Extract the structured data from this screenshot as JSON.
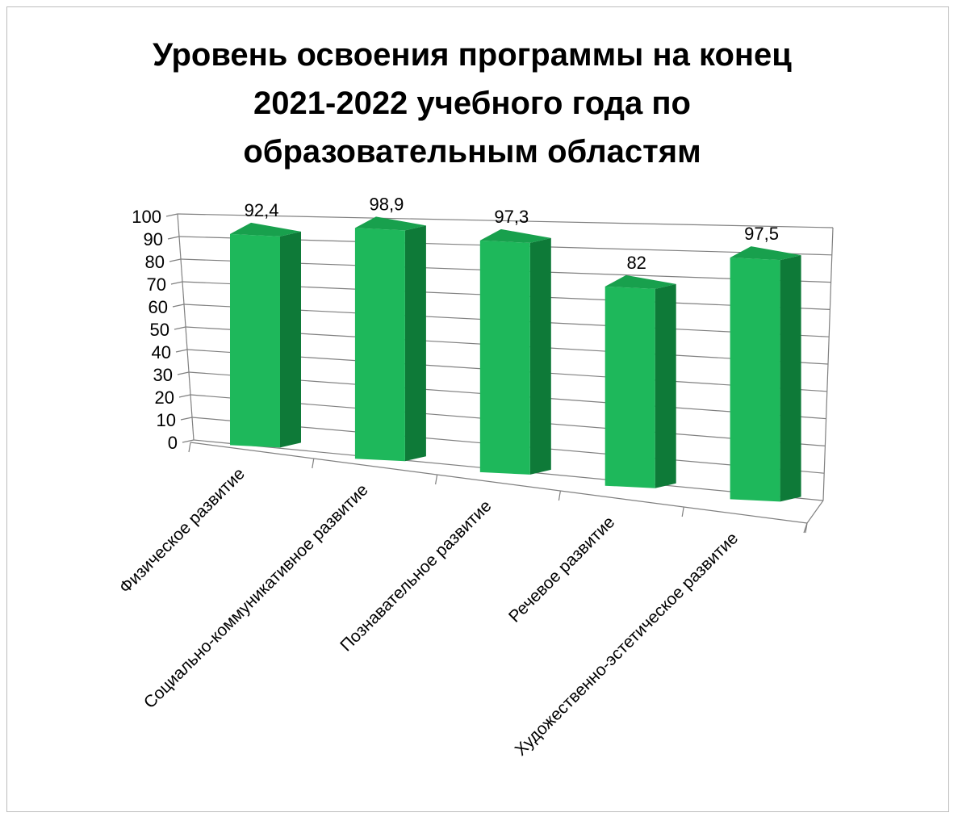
{
  "chart_data": {
    "type": "bar",
    "title": "Уровень освоения программы на конец 2021-2022 учебного года по образовательным областям",
    "title_lines": [
      "Уровень освоения программы на конец",
      "2021-2022 учебного года по",
      "образовательным областям"
    ],
    "categories": [
      "Физическое развитие",
      "Социально-коммуникативное развитие",
      "Познавательное развитие",
      "Речевое развитие",
      "Художественно-эстетическое развитие"
    ],
    "series": [
      {
        "values": [
          92.4,
          98.9,
          97.3,
          82,
          97.5
        ],
        "labels": [
          "92,4",
          "98,9",
          "97,3",
          "82",
          "97,5"
        ]
      }
    ],
    "y_ticks": [
      "0",
      "10",
      "20",
      "30",
      "40",
      "50",
      "60",
      "70",
      "80",
      "90",
      "100"
    ],
    "ylim": [
      0,
      100
    ],
    "grid": true,
    "legend": "none",
    "style": "3d-column",
    "colors": {
      "bar_front": "#1eb85b",
      "bar_side": "#0e7a38",
      "bar_top": "#18a04d",
      "grid": "#808080",
      "text": "#000000"
    }
  }
}
